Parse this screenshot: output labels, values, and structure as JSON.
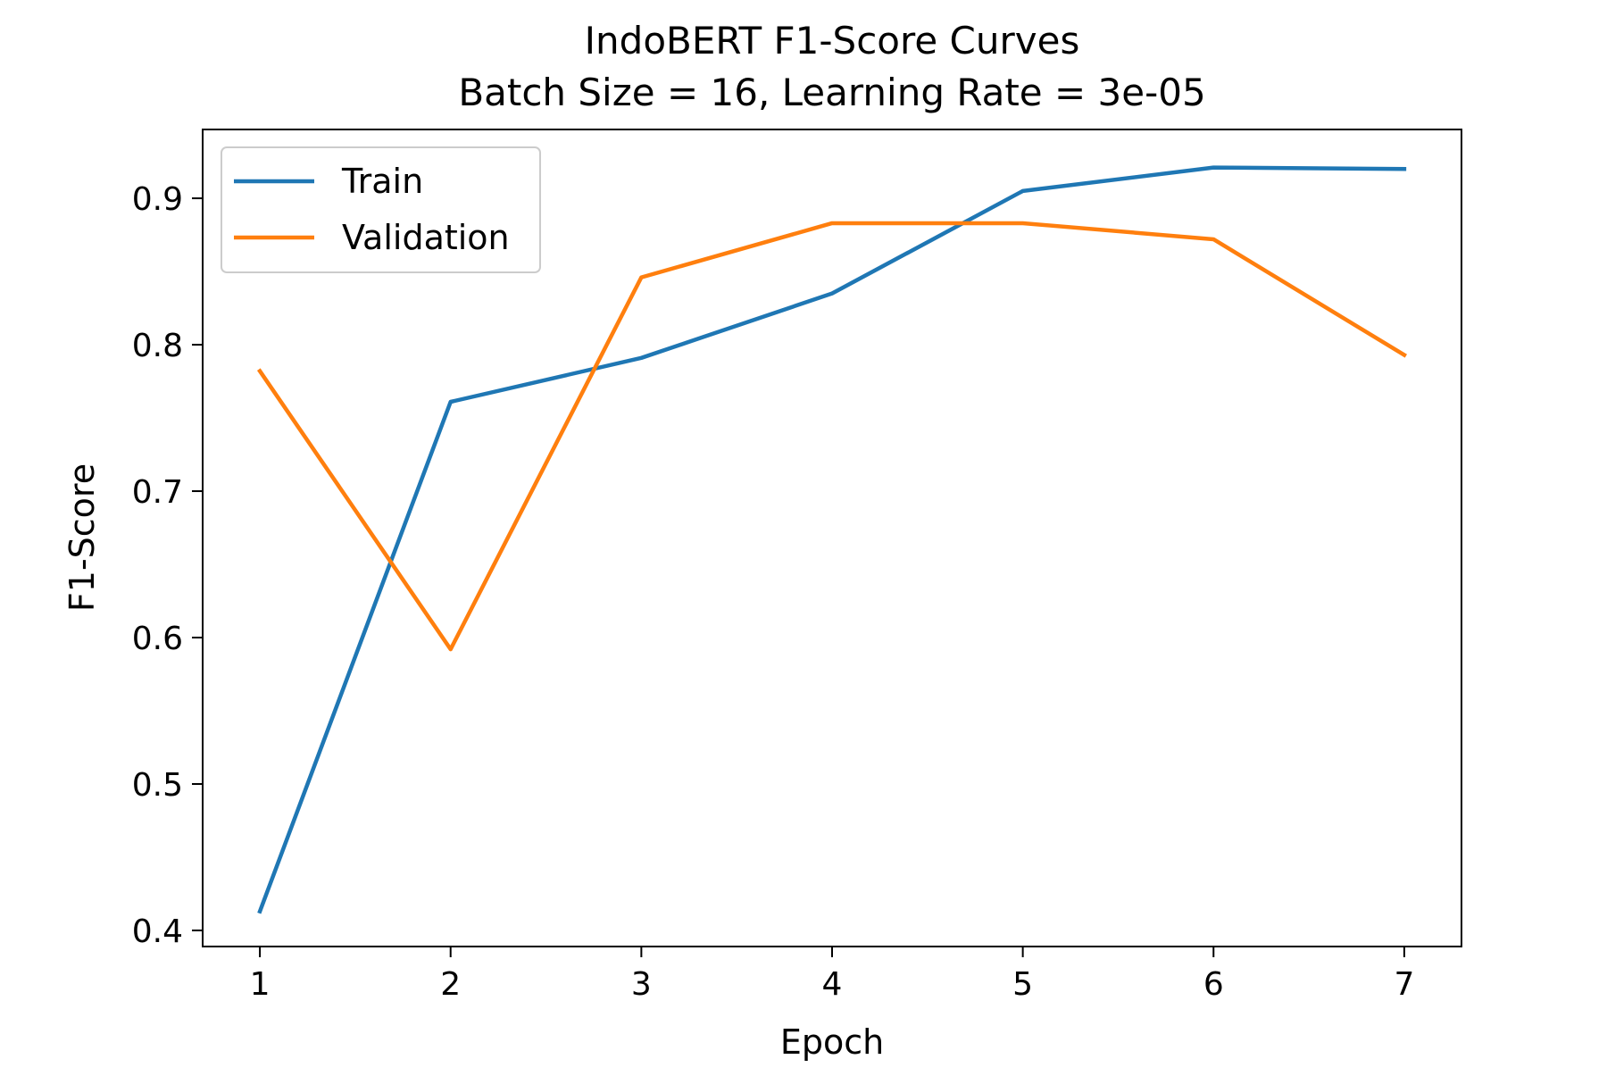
{
  "chart_data": {
    "type": "line",
    "title": "IndoBERT F1-Score Curves",
    "subtitle": "Batch Size = 16, Learning Rate = 3e-05",
    "xlabel": "Epoch",
    "ylabel": "F1-Score",
    "x": [
      1,
      2,
      3,
      4,
      5,
      6,
      7
    ],
    "xticks": [
      "1",
      "2",
      "3",
      "4",
      "5",
      "6",
      "7"
    ],
    "yticks": [
      "0.4",
      "0.5",
      "0.6",
      "0.7",
      "0.8",
      "0.9"
    ],
    "xlim": [
      0.7,
      7.3
    ],
    "ylim": [
      0.389,
      0.947
    ],
    "grid": false,
    "legend_position": "top-left",
    "series": [
      {
        "name": "Train",
        "color": "#1f77b4",
        "values": [
          0.413,
          0.761,
          0.791,
          0.835,
          0.905,
          0.921,
          0.92
        ]
      },
      {
        "name": "Validation",
        "color": "#ff7f0e",
        "values": [
          0.782,
          0.592,
          0.846,
          0.883,
          0.883,
          0.872,
          0.793
        ]
      }
    ]
  }
}
